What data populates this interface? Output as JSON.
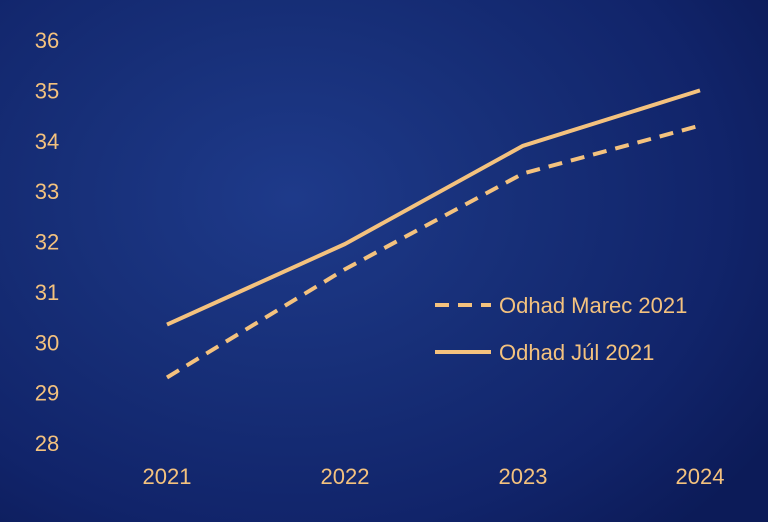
{
  "colors": {
    "line": "#f4c27e",
    "text": "#f4c27e"
  },
  "chart_data": {
    "type": "line",
    "x": [
      "2021",
      "2022",
      "2023",
      "2024"
    ],
    "y_ticks": [
      "28",
      "29",
      "30",
      "31",
      "32",
      "33",
      "34",
      "35",
      "36"
    ],
    "ylim": [
      28,
      36
    ],
    "grid": false,
    "legend_position": "right",
    "series": [
      {
        "name": "Odhad Marec 2021",
        "style": "dashed",
        "values": [
          29.3,
          31.45,
          33.35,
          34.3
        ]
      },
      {
        "name": "Odhad Júl 2021",
        "style": "solid",
        "values": [
          30.35,
          31.95,
          33.9,
          35.0
        ]
      }
    ]
  }
}
